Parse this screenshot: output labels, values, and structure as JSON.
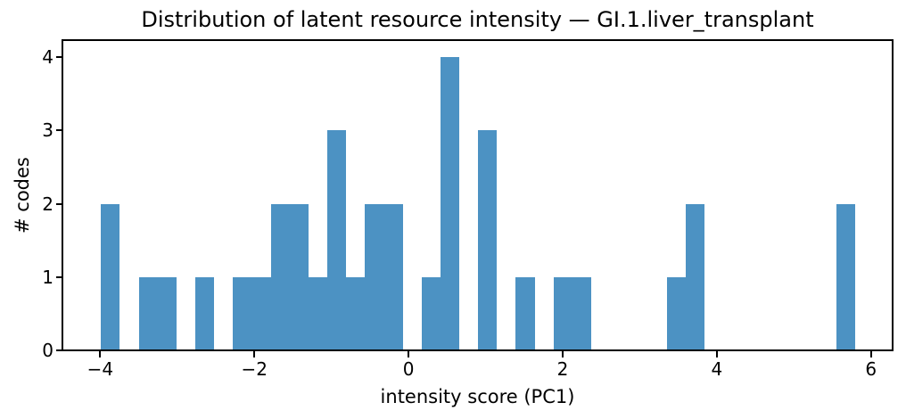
{
  "chart_data": {
    "type": "bar",
    "subtype": "histogram",
    "title": "Distribution of latent resource intensity — GI.1.liver_transplant",
    "xlabel": "intensity score (PC1)",
    "ylabel": "# codes",
    "bar_color": "#4c92c3",
    "axis_color": "#000000",
    "background_color": "#ffffff",
    "grid": false,
    "legend": null,
    "bin_start": -3.99,
    "bin_width": 0.2446,
    "counts": [
      2,
      0,
      1,
      1,
      0,
      1,
      0,
      1,
      1,
      2,
      2,
      1,
      3,
      1,
      2,
      2,
      0,
      1,
      4,
      0,
      3,
      0,
      1,
      0,
      1,
      1,
      0,
      0,
      0,
      0,
      1,
      2,
      0,
      0,
      0,
      0,
      0,
      0,
      0,
      2
    ],
    "xlim": [
      -4.49,
      6.28
    ],
    "ylim": [
      0,
      4.22
    ],
    "xticks": [
      {
        "value": -4,
        "label": "−4"
      },
      {
        "value": -2,
        "label": "−2"
      },
      {
        "value": 0,
        "label": "0"
      },
      {
        "value": 2,
        "label": "2"
      },
      {
        "value": 4,
        "label": "4"
      },
      {
        "value": 6,
        "label": "6"
      }
    ],
    "yticks": [
      {
        "value": 0,
        "label": "0"
      },
      {
        "value": 1,
        "label": "1"
      },
      {
        "value": 2,
        "label": "2"
      },
      {
        "value": 3,
        "label": "3"
      },
      {
        "value": 4,
        "label": "4"
      }
    ]
  }
}
